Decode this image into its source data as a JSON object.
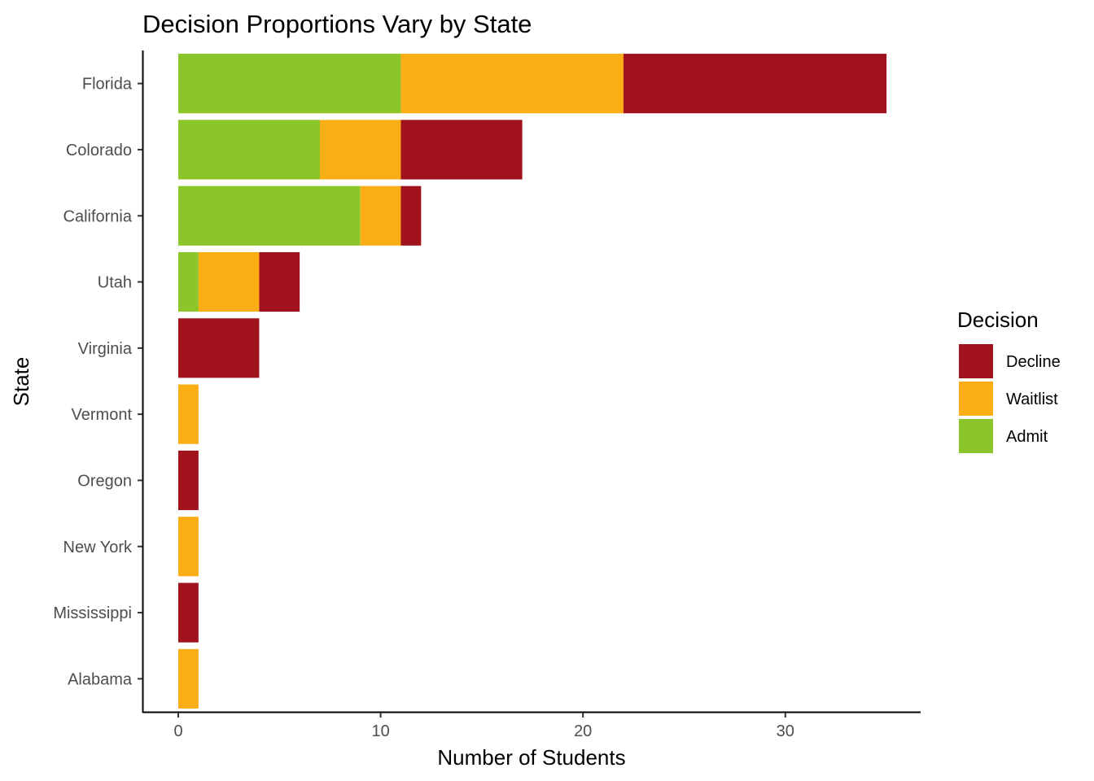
{
  "chart_data": {
    "type": "bar",
    "orientation": "horizontal",
    "stacked": true,
    "title": "Decision Proportions Vary by State",
    "xlabel": "Number of Students",
    "ylabel": "State",
    "xlim": [
      0,
      35
    ],
    "x_ticks": [
      "0",
      "10",
      "20",
      "30"
    ],
    "grid": false,
    "legend_title": "Decision",
    "legend_position": "right",
    "categories": [
      "Florida",
      "Colorado",
      "California",
      "Utah",
      "Virginia",
      "Vermont",
      "Oregon",
      "New York",
      "Mississippi",
      "Alabama"
    ],
    "series": [
      {
        "name": "Admit",
        "color": "#8bc52a",
        "values": [
          11,
          7,
          9,
          1,
          0,
          0,
          0,
          0,
          0,
          0
        ]
      },
      {
        "name": "Waitlist",
        "color": "#fbad15",
        "values": [
          11,
          4,
          2,
          3,
          0,
          1,
          0,
          1,
          0,
          1
        ]
      },
      {
        "name": "Decline",
        "color": "#a0131c",
        "values": [
          13,
          6,
          1,
          2,
          4,
          0,
          1,
          0,
          1,
          0
        ]
      }
    ],
    "legend_order": [
      "Decline",
      "Waitlist",
      "Admit"
    ]
  }
}
